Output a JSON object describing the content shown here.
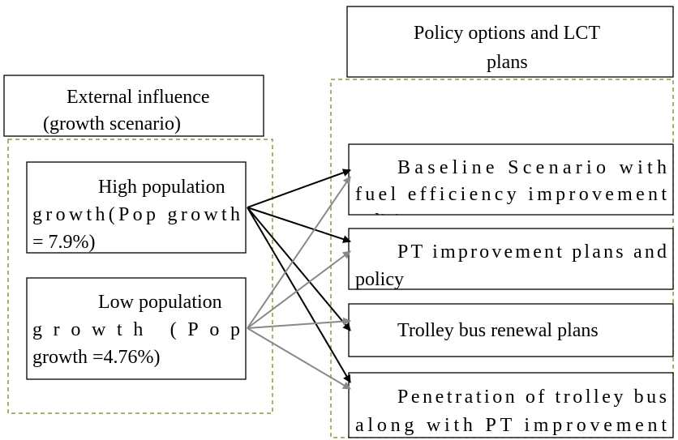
{
  "left": {
    "header": [
      "External influence",
      "(growth scenario)"
    ],
    "scenarios": [
      {
        "lines": [
          "High population",
          "growth(Pop growth",
          "= 7.9%)"
        ]
      },
      {
        "lines": [
          "Low population",
          "growth (Pop",
          "growth =4.76%)"
        ]
      }
    ]
  },
  "right": {
    "header": [
      "Policy options and LCT",
      "plans"
    ],
    "plans": [
      {
        "lines": [
          "Baseline Scenario with",
          "fuel efficiency improvement",
          "policies"
        ]
      },
      {
        "lines": [
          "PT improvement plans and",
          "policy"
        ]
      },
      {
        "lines": [
          "Trolley bus renewal plans"
        ]
      },
      {
        "lines": [
          "Penetration of trolley bus",
          "along with PT improvement"
        ]
      }
    ]
  }
}
